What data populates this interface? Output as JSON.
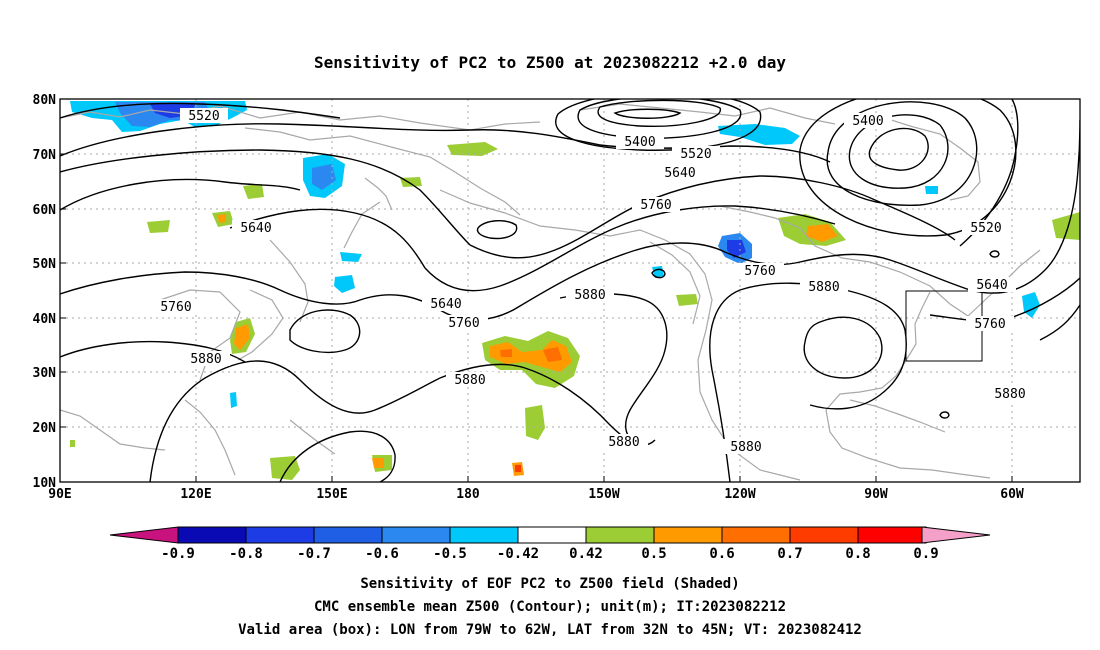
{
  "title": "Sensitivity of PC2 to Z500 at 2023082212 +2.0 day",
  "lat_labels": [
    "80N",
    "70N",
    "60N",
    "50N",
    "40N",
    "30N",
    "20N",
    "10N"
  ],
  "lon_labels": [
    "90E",
    "120E",
    "150E",
    "180",
    "150W",
    "120W",
    "90W",
    "60W"
  ],
  "contour_labels": [
    {
      "text": "5520",
      "key": "a"
    },
    {
      "text": "5400",
      "key": "b"
    },
    {
      "text": "5520",
      "key": "c"
    },
    {
      "text": "5400",
      "key": "d"
    },
    {
      "text": "5640",
      "key": "e"
    },
    {
      "text": "5760",
      "key": "f"
    },
    {
      "text": "5520",
      "key": "g"
    },
    {
      "text": "5640",
      "key": "h"
    },
    {
      "text": "5760",
      "key": "i"
    },
    {
      "text": "5880",
      "key": "j"
    },
    {
      "text": "5640",
      "key": "k"
    },
    {
      "text": "5760",
      "key": "l"
    },
    {
      "text": "5880",
      "key": "m"
    },
    {
      "text": "5760",
      "key": "n"
    },
    {
      "text": "5880",
      "key": "o"
    },
    {
      "text": "5640",
      "key": "p"
    },
    {
      "text": "5760",
      "key": "q"
    },
    {
      "text": "5880",
      "key": "r"
    },
    {
      "text": "5880",
      "key": "s"
    },
    {
      "text": "5880",
      "key": "t"
    },
    {
      "text": "5880",
      "key": "u"
    }
  ],
  "colorbar": {
    "colors": [
      "#0a0ab4",
      "#1e3ce6",
      "#1f5fe6",
      "#2a88f0",
      "#00c8fa",
      "#ffffff",
      "#9ccd35",
      "#ff9b00",
      "#ff6e00",
      "#ff3c00",
      "#ff0000"
    ],
    "left_triangle_color": "#c8127d",
    "right_triangle_color": "#f5a0c8",
    "labels": [
      "-0.9",
      "-0.8",
      "-0.7",
      "-0.6",
      "-0.5",
      "-0.42",
      "0.42",
      "0.5",
      "0.6",
      "0.7",
      "0.8",
      "0.9"
    ]
  },
  "footer": {
    "line1": "Sensitivity of EOF PC2 to Z500 field (Shaded)",
    "line2": "CMC ensemble mean Z500 (Contour); unit(m); IT:2023082212",
    "line3": "Valid area (box): LON from 79W to 62W, LAT from 32N to 45N; VT: 2023082412"
  },
  "valid_box": {
    "lon_min": -79,
    "lon_max": -62,
    "lat_min": 32,
    "lat_max": 45
  },
  "colors": {
    "contour": "#000000",
    "coast": "#a8a8a8",
    "grid": "#aaaaaa"
  }
}
